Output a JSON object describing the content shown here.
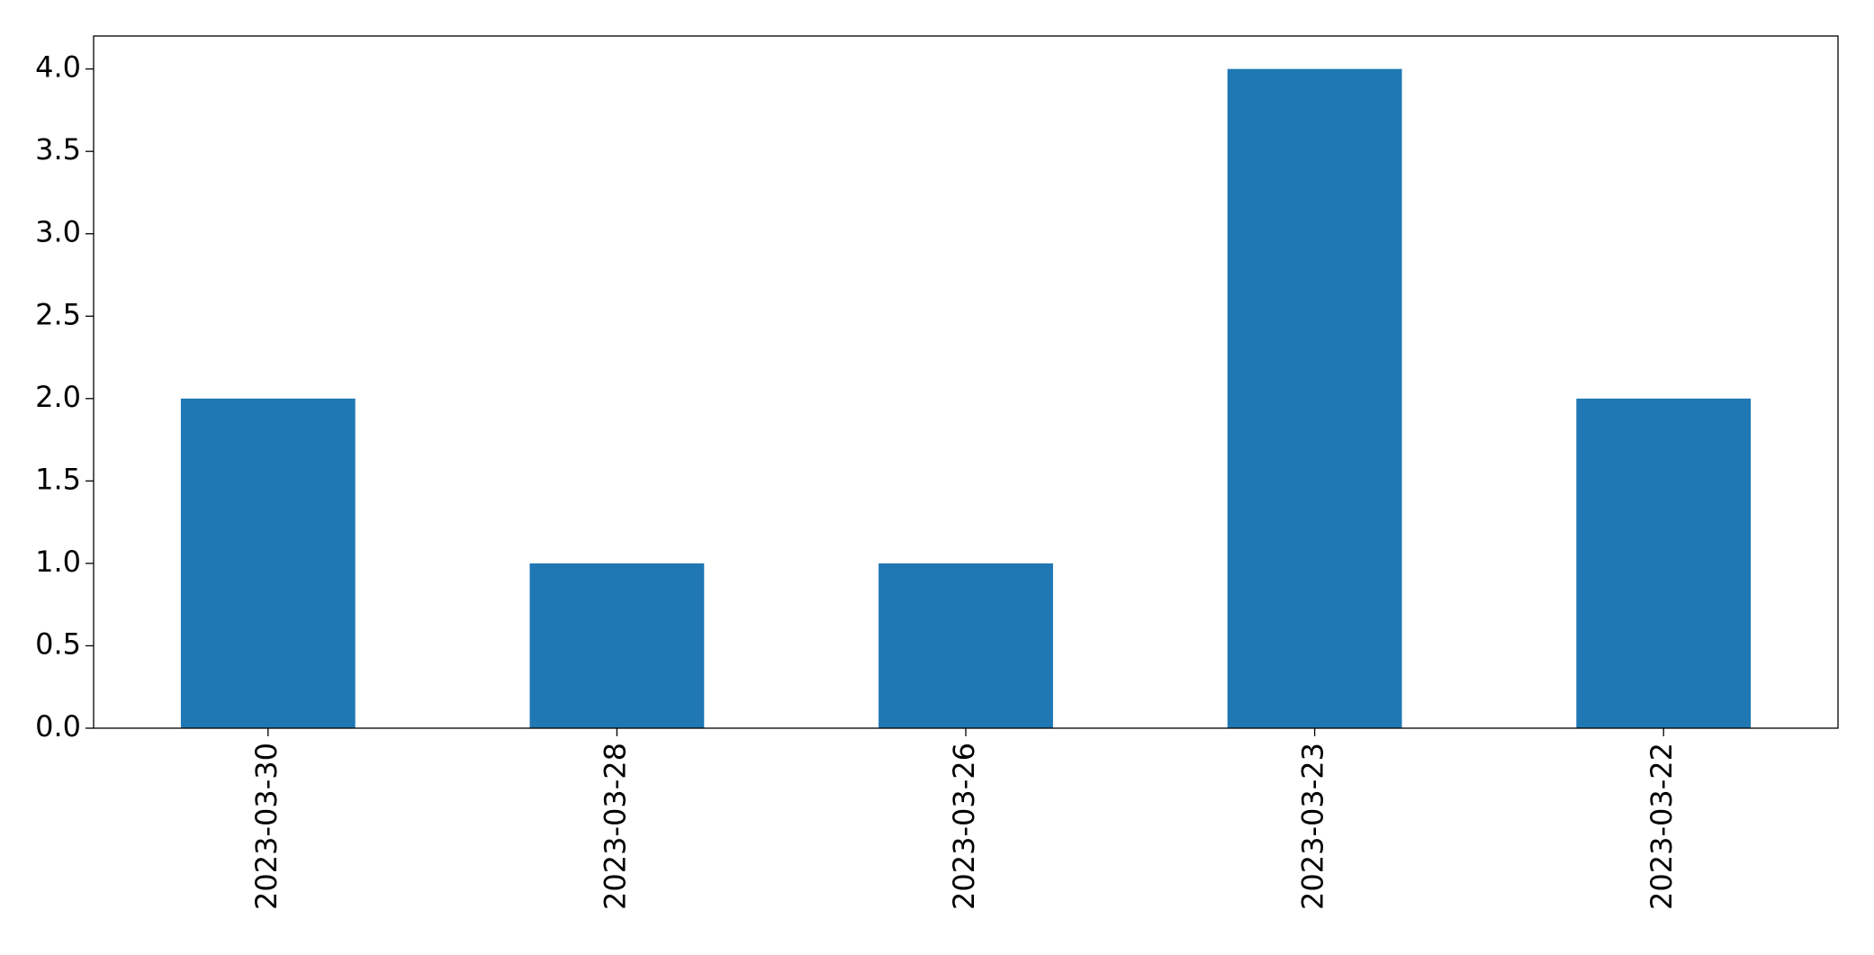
{
  "chart_data": {
    "type": "bar",
    "categories": [
      "2023-03-30",
      "2023-03-28",
      "2023-03-26",
      "2023-03-23",
      "2023-03-22"
    ],
    "values": [
      2,
      1,
      1,
      4,
      2
    ],
    "color": "#1f77b4",
    "ylim": [
      0,
      4.2
    ],
    "yticks": [
      {
        "value": 0,
        "label": "0.0"
      },
      0.5,
      {
        "value": 1,
        "label": "1.0"
      },
      1.5,
      {
        "value": 2,
        "label": "2.0"
      },
      2.5,
      {
        "value": 3,
        "label": "3.0"
      },
      3.5,
      {
        "value": 4,
        "label": "4.0"
      }
    ],
    "grid": false
  }
}
